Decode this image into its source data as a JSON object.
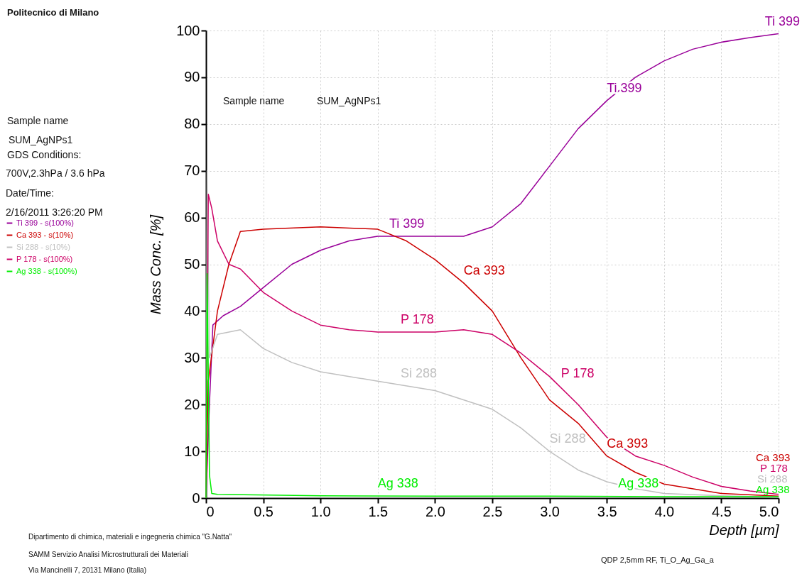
{
  "chart_data": {
    "type": "line",
    "xlabel": "Depth [µm]",
    "ylabel": "Mass Conc. [%]",
    "xlim": [
      0,
      5
    ],
    "ylim": [
      0,
      100
    ],
    "xticks": [
      0,
      0.5,
      {
        "value": 1,
        "label": "1.0"
      },
      1.5,
      {
        "value": 2,
        "label": "2.0"
      },
      2.5,
      {
        "value": 3,
        "label": "3.0"
      },
      3.5,
      {
        "value": 4,
        "label": "4.0"
      },
      4.5,
      {
        "value": 5,
        "label": "5.0"
      }
    ],
    "yticks": [
      0,
      10,
      20,
      30,
      40,
      50,
      60,
      70,
      80,
      90,
      100
    ],
    "grid": true,
    "legend": "left",
    "series": [
      {
        "name": "Ti 399 - s(100%)",
        "color": "#990099",
        "x": [
          0,
          0.03,
          0.06,
          0.15,
          0.3,
          0.5,
          0.75,
          1.0,
          1.25,
          1.5,
          1.75,
          2.0,
          2.25,
          2.5,
          2.75,
          3.0,
          3.25,
          3.5,
          3.75,
          4.0,
          4.25,
          4.5,
          4.75,
          5.0
        ],
        "values": [
          0,
          20,
          37,
          39,
          41,
          45,
          50,
          53,
          55,
          56,
          56,
          56,
          56,
          58,
          63,
          71,
          79,
          85,
          90,
          93.5,
          96,
          97.5,
          98.5,
          99.3
        ]
      },
      {
        "name": "Ca 393 - s(10%)",
        "color": "#cc0000",
        "x": [
          0,
          0.02,
          0.1,
          0.2,
          0.3,
          0.5,
          1.0,
          1.5,
          1.75,
          2.0,
          2.25,
          2.5,
          2.75,
          3.0,
          3.25,
          3.5,
          3.75,
          4.0,
          4.5,
          5.0
        ],
        "values": [
          0,
          25,
          40,
          50,
          57,
          57.5,
          58,
          57.5,
          55,
          51,
          46,
          40,
          30,
          21,
          16,
          9,
          5.5,
          3,
          1,
          0.4
        ]
      },
      {
        "name": "Si 288 - s(10%)",
        "color": "#c0c0c0",
        "x": [
          0,
          0.01,
          0.03,
          0.1,
          0.3,
          0.5,
          0.75,
          1.0,
          1.5,
          2.0,
          2.5,
          2.75,
          3.0,
          3.25,
          3.5,
          3.75,
          4.0,
          4.5,
          5.0
        ],
        "values": [
          0,
          70,
          30,
          35,
          36,
          32,
          29,
          27,
          25,
          23,
          19,
          15,
          10,
          6,
          3.5,
          2,
          1,
          0.5,
          0.2
        ]
      },
      {
        "name": "P 178 - s(100%)",
        "color": "#cc0066",
        "x": [
          0,
          0.02,
          0.05,
          0.1,
          0.2,
          0.3,
          0.5,
          0.75,
          1.0,
          1.25,
          1.5,
          2.0,
          2.25,
          2.5,
          2.75,
          3.0,
          3.25,
          3.5,
          3.75,
          4.0,
          4.25,
          4.5,
          4.75,
          5.0
        ],
        "values": [
          0,
          65,
          62,
          55,
          50,
          49,
          44,
          40,
          37,
          36,
          35.5,
          35.5,
          36,
          35,
          31,
          26,
          20,
          13,
          9,
          7,
          4.5,
          2.5,
          1.5,
          0.8
        ]
      },
      {
        "name": "Ag 338 - s(100%)",
        "color": "#00ee00",
        "x": [
          0,
          0.01,
          0.03,
          0.05,
          0.1,
          1.0,
          2.0,
          3.0,
          4.0,
          5.0
        ],
        "values": [
          0,
          48,
          5,
          1,
          0.8,
          0.5,
          0.4,
          0.4,
          0.3,
          0.3
        ]
      }
    ],
    "annotations": [
      "Politecnico di Milano",
      "Sample name",
      "SUM_AgNPs1",
      "GDS Conditions:",
      "700V,2.3hPa / 3.6 hPa",
      "Date/Time:",
      "2/16/2011 3:26:20 PM",
      "Sample name",
      "SUM_AgNPs1",
      "Dipartimento di chimica, materiali e ingegneria chimica \"G.Natta\"",
      "SAMM Servizio Analisi Microstrutturali dei Materiali",
      "Via Mancinelli 7, 20131 Milano (Italia)",
      "QDP 2,5mm RF, Ti_O_Ag_Ga_a",
      {
        "text": "Ti 399",
        "x": 5.0,
        "y": 99.3
      },
      {
        "text": "Ti 399",
        "x": 3.5,
        "y": 85
      },
      {
        "text": "Ti 399",
        "x": 1.6,
        "y": 56
      },
      {
        "text": "Ca 393",
        "x": 2.25,
        "y": 46
      },
      {
        "text": "P 178",
        "x": 1.7,
        "y": 35.5
      },
      {
        "text": "Si 288",
        "x": 1.7,
        "y": 24
      },
      {
        "text": "P 178",
        "x": 3.1,
        "y": 24
      },
      {
        "text": "Ca 393",
        "x": 3.5,
        "y": 9
      },
      {
        "text": "Si 288",
        "x": 3.0,
        "y": 10
      },
      {
        "text": "Ag 338",
        "x": 1.5,
        "y": 0.5
      },
      {
        "text": "Ag 338",
        "x": 3.6,
        "y": 0.4
      },
      "Ca 393",
      "P 178",
      "Si 288",
      "Ag 338"
    ]
  }
}
